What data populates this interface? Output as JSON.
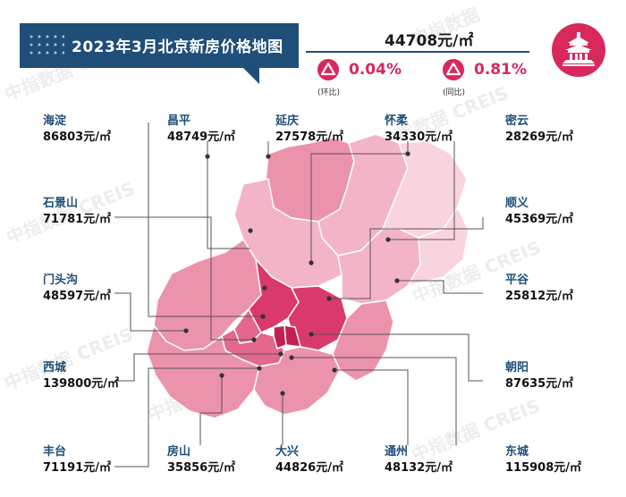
{
  "title": "2023年3月北京新房价格地图",
  "average_price": "44708元/㎡",
  "changes": [
    {
      "id": "mom",
      "value": "0.04%",
      "label": "(环比)"
    },
    {
      "id": "yoy",
      "value": "0.81%",
      "label": "(同比)"
    }
  ],
  "watermark_texts": [
    "中指数据",
    "中指数据 CREIS",
    "中指数据 CREIS",
    "中指数据 CREIS",
    "中指数据 CREIS",
    "中指数据 CREIS",
    "中指数据 CREIS",
    "中指数据 CREIS",
    "中指数据 CREIS"
  ],
  "districts": {
    "haidian": {
      "name": "海淀",
      "price": "86803元/㎡"
    },
    "changping": {
      "name": "昌平",
      "price": "48749元/㎡"
    },
    "yanqing": {
      "name": "延庆",
      "price": "27578元/㎡"
    },
    "huairou": {
      "name": "怀柔",
      "price": "34330元/㎡"
    },
    "miyun": {
      "name": "密云",
      "price": "28269元/㎡"
    },
    "shijingshan": {
      "name": "石景山",
      "price": "71781元/㎡"
    },
    "shunyi": {
      "name": "顺义",
      "price": "45369元/㎡"
    },
    "mentougou": {
      "name": "门头沟",
      "price": "48597元/㎡"
    },
    "pinggu": {
      "name": "平谷",
      "price": "25812元/㎡"
    },
    "xicheng": {
      "name": "西城",
      "price": "139800元/㎡"
    },
    "chaoyang": {
      "name": "朝阳",
      "price": "87635元/㎡"
    },
    "fengtai": {
      "name": "丰台",
      "price": "71191元/㎡"
    },
    "fangshan": {
      "name": "房山",
      "price": "35856元/㎡"
    },
    "daxing": {
      "name": "大兴",
      "price": "44826元/㎡"
    },
    "tongzhou": {
      "name": "通州",
      "price": "48132元/㎡"
    },
    "dongcheng": {
      "name": "东城",
      "price": "115908元/㎡"
    }
  },
  "colors": {
    "brand_blue": "#1f4e79",
    "accent_red": "#d9285c",
    "region_lightest": "#f9d3dd",
    "region_light": "#f3b4c7",
    "region_mid": "#ec93ac",
    "region_strong": "#e4688b",
    "region_dark": "#d93a6b",
    "region_darkest": "#c41f50"
  }
}
